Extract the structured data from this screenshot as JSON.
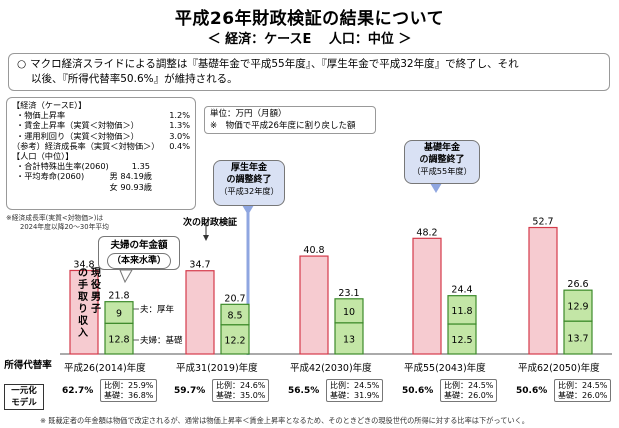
{
  "header": {
    "title": "平成26年財政検証の結果について",
    "subtitle": "＜ 経済：ケースE　 人口：中位 ＞"
  },
  "summary": {
    "bullet": "○",
    "line1": "マクロ経済スライドによる調整は『基礎年金で平成55年度』、『厚生年金で平成32年度』で終了し、それ",
    "line2": "以後、『所得代替率50.6%』が維持される。"
  },
  "params": {
    "econ_header": "【経済（ケースE）】",
    "econ": [
      {
        "label": "・物価上昇率",
        "value": "1.2%"
      },
      {
        "label": "・賃金上昇率（実質＜対物価＞）",
        "value": "1.3%"
      },
      {
        "label": "・運用利回り（実質＜対物価＞）",
        "value": "3.0%"
      },
      {
        "label": "（参考）経済成長率（実質＜対物価＞）",
        "value": "0.4%"
      }
    ],
    "pop_header": "【人口（中位）】",
    "fertility_label": "・合計特殊出生率(2060)",
    "fertility_value": "1.35",
    "life_label": "・平均寿命(2060)",
    "life_male_label": "男",
    "life_male": "84.19歳",
    "life_female_label": "女",
    "life_female": "90.93歳"
  },
  "growth_note": {
    "line1": "※経済成長率(実質<対物価>)は",
    "line2": "2024年度以降20～30年平均"
  },
  "units": {
    "line1": "単位：万円（月額）",
    "line2": "※　物価で平成26年度に割り戻した額"
  },
  "annotations": {
    "kosei_end": {
      "line1": "厚生年金",
      "line2": "の調整終了",
      "line3": "（平成32年度）"
    },
    "kiso_end": {
      "line1": "基礎年金",
      "line2": "の調整終了",
      "line3": "（平成55年度）"
    },
    "next_check": "次の財政検証",
    "household": {
      "line1": "夫婦の年金額",
      "line2": "（本来水準）"
    },
    "husband_kosei": "夫：厚年",
    "husband_kiso": "夫婦：基礎",
    "wage_bar_text": "現役男子の手取り収入"
  },
  "bottom": {
    "rep_label": "所得代替率",
    "model_label_1": "一元化",
    "model_label_2": "モデル",
    "note": "※ 既裁定者の年金額は物価で改定されるが、通常は物価上昇率＜賃金上昇率となるため、そのときどきの現役世代の所得に対する比率は下がっていく。",
    "ratio_prefix": "比例：",
    "basic_prefix": "基礎："
  },
  "colors": {
    "wage_fill": "#f6cbd0",
    "wage_stroke": "#d43a4a",
    "pension_fill": "#c3e6a6",
    "pension_stroke": "#3c8a2a",
    "callout_fill": "#d9e1f4",
    "divider": "#8fa6e0"
  },
  "chart_data": {
    "type": "bar",
    "categories": [
      "平成26(2014)年度",
      "平成31(2019)年度",
      "平成42(2030)年度",
      "平成55(2043)年度",
      "平成62(2050)年度"
    ],
    "series": [
      {
        "values": [
          34.8,
          34.7,
          40.8,
          48.2,
          52.7
        ]
      },
      {
        "values": [
          12.8,
          12.2,
          13.0,
          12.5,
          13.7
        ]
      },
      {
        "values": [
          9.0,
          8.5,
          10.0,
          11.8,
          12.9
        ]
      }
    ],
    "pension_totals": [
      21.8,
      20.7,
      23.1,
      24.4,
      26.6
    ],
    "replacement_rates": [
      "62.7%",
      "59.7%",
      "56.5%",
      "50.6%",
      "50.6%"
    ],
    "ratio_proportional": [
      "25.9%",
      "24.6%",
      "24.5%",
      "24.5%",
      "24.5%"
    ],
    "ratio_basic": [
      "36.8%",
      "35.0%",
      "31.9%",
      "26.0%",
      "26.0%"
    ],
    "xlabel": "",
    "ylabel": ""
  }
}
